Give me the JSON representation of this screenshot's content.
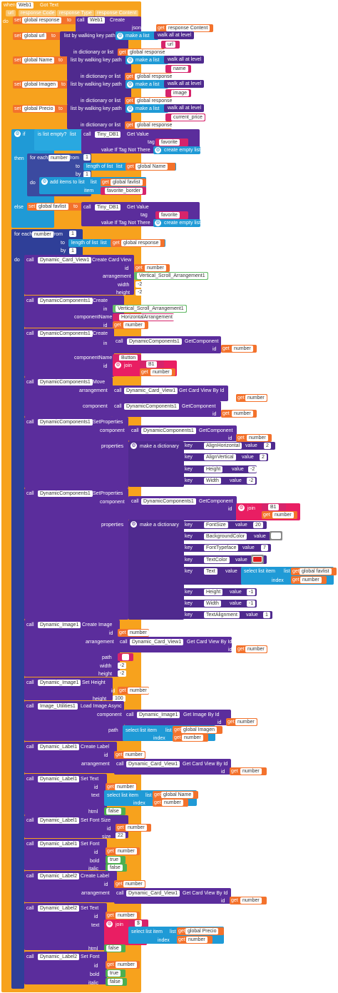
{
  "event": {
    "when": "when",
    "component": "Web1",
    "name": "Got Text",
    "params": [
      "url",
      "responseCode",
      "responseType",
      "responseContent"
    ],
    "do": "do"
  },
  "kw": {
    "set": "set",
    "to": "to",
    "call": "call",
    "get": "get",
    "if": "if",
    "then": "then",
    "else": "else",
    "do": "do",
    "for_each": "for each",
    "from": "from",
    "by": "by",
    "in": "in",
    "key": "key",
    "value": "value",
    "id": "id",
    "index": "index",
    "list": "list",
    "for_each_number": "number",
    "is_list_empty": "is list empty?",
    "length_of_list": "length of list",
    "add_items": "add items to list",
    "item": "item",
    "make_a_list": "make a list",
    "make_a_dict": "make a dictionary",
    "join": "join",
    "select_list_item": "select list item",
    "walk_all": "walk all at level",
    "list_by_walking": "list by walking key path",
    "in_dict_or_list": "in dictionary or list",
    "json_text": "json Text",
    "json_decode": "JSON Text Decode",
    "get_value": "Get Value",
    "tag": "tag",
    "value_if_not": "value If Tag Not There",
    "create_empty": "create empty list",
    "arrangement": "arrangement",
    "width": "width",
    "height": "height",
    "componentName": "componentName",
    "component": "component",
    "properties": "properties",
    "path": "path",
    "text": "text",
    "html": "html",
    "size": "size",
    "bold": "bold",
    "italic": "italic"
  },
  "vars": {
    "response": "global response",
    "url": "global url",
    "name": "global Name",
    "imagen": "global Imagen",
    "precio": "global Precio",
    "favlist": "global favlist",
    "number": "number",
    "responseContent": "response Content"
  },
  "strings": {
    "url": "url",
    "name": "name",
    "image": "image",
    "current_price": "current_price",
    "favorite": "favorite",
    "favorite_border": "favorite_border",
    "button": "Button",
    "horizontal": "HorizontalArrangement",
    "b1": "B1",
    "alignH": "AlignHorizontal",
    "alignV": "AlignVertical",
    "height": "Height",
    "width": "Width",
    "fontsize": "FontSize",
    "bgcolor": "BackgroundColor",
    "fonttype": "FontTypeface",
    "textcolor": "TextColor",
    "text": "Text",
    "textalign": "TextAlignment",
    "dollar": "$",
    "empty": ""
  },
  "nums": {
    "one": "1",
    "neg2": "-2",
    "two": "2",
    "twenty": "20",
    "seven": "7",
    "neg1": "-1",
    "hundred": "100",
    "twentytwo": "22"
  },
  "comps": {
    "web1": "Web1",
    "tinydb": "Tiny_DB1",
    "card": "Dynamic_Card_View1",
    "dyn": "DynamicComponents1",
    "vsa": "Vertical_Scroll_Arrangement1",
    "img": "Dynamic_Image1",
    "imgutil": "Image_Utilities1",
    "lbl1": "Dynamic_Label1",
    "lbl2": "Dynamic_Label2"
  },
  "methods": {
    "create_card": "Create Card View",
    "create": "Create",
    "get_component": "GetComponent",
    "move": "Move",
    "get_card": "Get Card View By Id",
    "set_props": "SetProperties",
    "create_image": "Create Image",
    "set_height": "Set Height",
    "load_image": "Load Image Async",
    "get_image": "Get Image By Id",
    "create_label": "Create Label",
    "set_text": "Set Text",
    "set_font_size": "Set Font Size",
    "set_font": "Set Font"
  },
  "bools": {
    "true": "true",
    "false": "false"
  },
  "colors": {
    "event": "#f7a21d",
    "procedure": "#5b2d9c",
    "list": "#1f9ad6",
    "variable": "#f3722c",
    "text": "#d6246b",
    "math": "#3b4aa0",
    "logic": "#4caf50",
    "textcolor_swatch": "#e02020",
    "bgcolor_swatch": "#ffffff"
  }
}
